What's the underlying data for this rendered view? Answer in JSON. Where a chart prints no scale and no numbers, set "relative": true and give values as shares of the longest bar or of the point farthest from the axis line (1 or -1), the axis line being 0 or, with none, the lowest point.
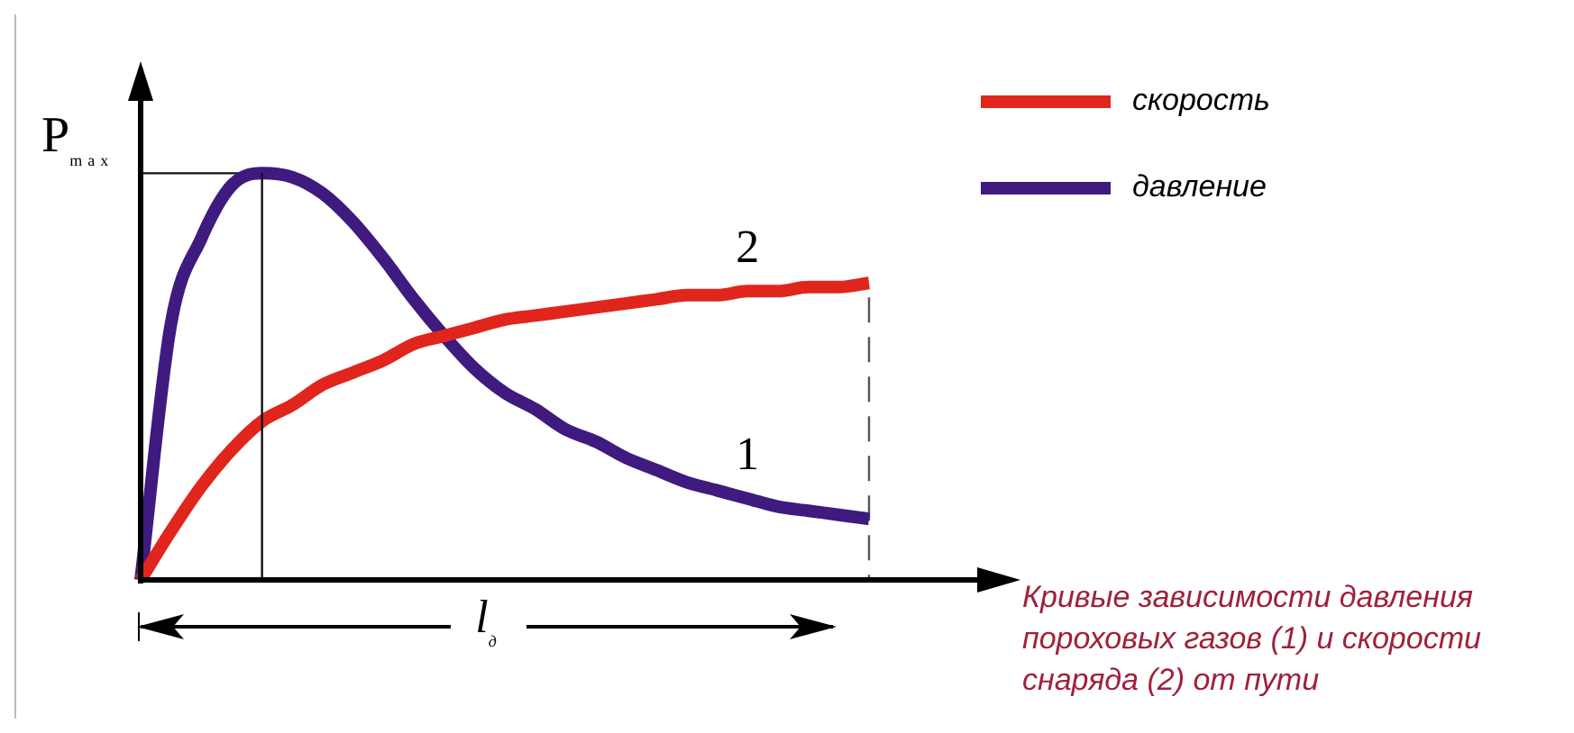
{
  "chart_data": {
    "type": "line",
    "relative": true,
    "ylabel": "P$_{max}$",
    "xlabel": "l$_{д}$",
    "categories": [
      null,
      null,
      null,
      null,
      null,
      null,
      null,
      null,
      null,
      null,
      null,
      null,
      null,
      null,
      null,
      null,
      null,
      null,
      null,
      null,
      null,
      null,
      null,
      null,
      null
    ],
    "series": [
      {
        "name": "скорость",
        "color": "#e0261c",
        "values": [
          0,
          0.12,
          0.23,
          0.32,
          0.39,
          0.43,
          0.48,
          0.51,
          0.54,
          0.58,
          0.6,
          0.62,
          0.64,
          0.65,
          0.66,
          0.67,
          0.68,
          0.69,
          0.7,
          0.7,
          0.71,
          0.71,
          0.72,
          0.72,
          0.73
        ]
      },
      {
        "name": "давление",
        "color": "#3f1a7f",
        "values": [
          0,
          0.63,
          0.84,
          0.97,
          1,
          0.99,
          0.95,
          0.88,
          0.79,
          0.69,
          0.6,
          0.52,
          0.46,
          0.42,
          0.37,
          0.34,
          0.3,
          0.27,
          0.24,
          0.22,
          0.2,
          0.18,
          0.17,
          0.16,
          0.15
        ]
      }
    ],
    "annotations": [
      "2",
      "1",
      "Кривые зависимости давления пороховых газов (1) и скорости снаряда (2) от пути"
    ],
    "ref_lines": [
      {
        "axis": "y",
        "value": 1
      }
    ],
    "legend": "top right",
    "marker": "none",
    "line_style": "solid"
  }
}
